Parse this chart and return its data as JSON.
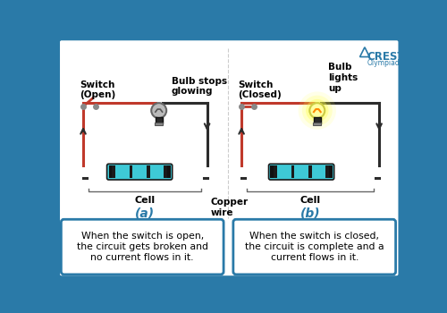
{
  "bg_color": "#2a7aa8",
  "inner_bg": "#ffffff",
  "box1_text": "When the switch is open,\nthe circuit gets broken and\nno current flows in it.",
  "box2_text": "When the switch is closed,\nthe circuit is complete and a\ncurrent flows in it.",
  "label_a": "(a)",
  "label_b": "(b)",
  "switch_open_label": "Switch\n(Open)",
  "switch_closed_label": "Switch\n(Closed)",
  "bulb_stops_label": "Bulb stops\nglowing",
  "bulb_lights_label": "Bulb\nlights\nup",
  "cell_label": "Cell",
  "copper_wire_label": "Copper\nwire",
  "wire_red": "#c0392b",
  "wire_dark": "#2c2c2c",
  "cell_color": "#3ec9d6",
  "cell_band": "#1a1a1a",
  "label_color": "#2a7aa8",
  "box_border_color": "#2a7aa8",
  "crest_color": "#2a7aa8"
}
